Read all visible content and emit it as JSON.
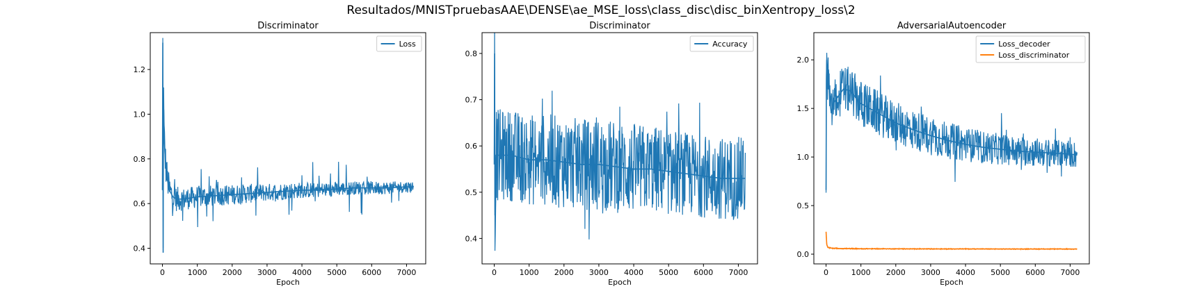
{
  "figure": {
    "suptitle": "Resultados/MNISTpruebasAAE\\DENSE\\ae_MSE_loss\\class_disc\\disc_binXentropy_loss\\2"
  },
  "chart_data": [
    {
      "type": "line",
      "title": "Discriminator",
      "xlabel": "Epoch",
      "ylabel": "",
      "xlim": [
        -350,
        7550
      ],
      "ylim": [
        0.33,
        1.365
      ],
      "xticks": [
        0,
        1000,
        2000,
        3000,
        4000,
        5000,
        6000,
        7000
      ],
      "yticks": [
        0.4,
        0.6,
        0.8,
        1.0,
        1.2
      ],
      "ytick_labels": [
        "0.4",
        "0.6",
        "0.8",
        "1.0",
        "1.2"
      ],
      "legend": "top-right",
      "grid": false,
      "series": [
        {
          "name": "Loss",
          "color": "#1f77b4",
          "x": [
            0,
            10,
            20,
            30,
            40,
            50,
            70,
            100,
            150,
            200,
            300,
            400,
            500,
            600,
            800,
            1000,
            1500,
            2000,
            2500,
            3000,
            3500,
            4000,
            4500,
            5000,
            5500,
            6000,
            6500,
            7000,
            7200
          ],
          "y": [
            0.66,
            1.32,
            0.38,
            1.12,
            0.97,
            0.9,
            0.83,
            0.76,
            0.7,
            0.66,
            0.63,
            0.62,
            0.62,
            0.62,
            0.625,
            0.63,
            0.635,
            0.64,
            0.645,
            0.65,
            0.655,
            0.66,
            0.66,
            0.665,
            0.67,
            0.67,
            0.67,
            0.675,
            0.675
          ],
          "band": [
            0.02,
            0.08,
            0.06,
            0.15,
            0.12,
            0.1,
            0.09,
            0.08,
            0.07,
            0.065,
            0.06,
            0.055,
            0.055,
            0.05,
            0.05,
            0.05,
            0.048,
            0.045,
            0.043,
            0.04,
            0.038,
            0.036,
            0.034,
            0.032,
            0.03,
            0.03,
            0.028,
            0.026,
            0.026
          ],
          "spikes": [
            0.12,
            0.12
          ]
        }
      ]
    },
    {
      "type": "line",
      "title": "Discriminator",
      "xlabel": "Epoch",
      "ylabel": "",
      "xlim": [
        -350,
        7550
      ],
      "ylim": [
        0.345,
        0.845
      ],
      "xticks": [
        0,
        1000,
        2000,
        3000,
        4000,
        5000,
        6000,
        7000
      ],
      "yticks": [
        0.4,
        0.5,
        0.6,
        0.7,
        0.8
      ],
      "ytick_labels": [
        "0.4",
        "0.5",
        "0.6",
        "0.7",
        "0.8"
      ],
      "legend": "top-right",
      "grid": false,
      "series": [
        {
          "name": "Accuracy",
          "color": "#1f77b4",
          "x": [
            0,
            10,
            20,
            50,
            100,
            300,
            500,
            1000,
            1500,
            2000,
            2500,
            3000,
            3500,
            4000,
            4500,
            5000,
            5500,
            6000,
            6500,
            7000,
            7200
          ],
          "y": [
            0.56,
            0.8,
            0.45,
            0.58,
            0.58,
            0.58,
            0.58,
            0.57,
            0.57,
            0.565,
            0.56,
            0.56,
            0.555,
            0.55,
            0.55,
            0.545,
            0.54,
            0.535,
            0.53,
            0.53,
            0.53
          ],
          "band": [
            0.1,
            0.1,
            0.1,
            0.1,
            0.1,
            0.1,
            0.1,
            0.1,
            0.1,
            0.1,
            0.1,
            0.1,
            0.1,
            0.1,
            0.095,
            0.095,
            0.09,
            0.09,
            0.09,
            0.09,
            0.09
          ],
          "spikes": [
            0.08,
            0.1
          ]
        }
      ]
    },
    {
      "type": "line",
      "title": "AdversarialAutoencoder",
      "xlabel": "Epoch",
      "ylabel": "",
      "xlim": [
        -350,
        7550
      ],
      "ylim": [
        -0.1,
        2.28
      ],
      "xticks": [
        0,
        1000,
        2000,
        3000,
        4000,
        5000,
        6000,
        7000
      ],
      "yticks": [
        0.0,
        0.5,
        1.0,
        1.5,
        2.0
      ],
      "ytick_labels": [
        "0.0",
        "0.5",
        "1.0",
        "1.5",
        "2.0"
      ],
      "legend": "top-right",
      "grid": false,
      "series": [
        {
          "name": "Loss_decoder",
          "color": "#1f77b4",
          "x": [
            0,
            10,
            20,
            40,
            70,
            100,
            150,
            200,
            300,
            500,
            700,
            1000,
            1500,
            2000,
            2500,
            3000,
            3500,
            4000,
            4500,
            5000,
            5500,
            6000,
            6500,
            7000,
            7200
          ],
          "y": [
            0.66,
            1.8,
            2.0,
            1.7,
            1.9,
            1.6,
            1.45,
            1.55,
            1.6,
            1.7,
            1.68,
            1.55,
            1.45,
            1.35,
            1.28,
            1.22,
            1.17,
            1.13,
            1.1,
            1.08,
            1.06,
            1.05,
            1.04,
            1.03,
            1.02
          ],
          "band": [
            0.05,
            0.15,
            0.15,
            0.2,
            0.22,
            0.22,
            0.22,
            0.24,
            0.25,
            0.25,
            0.24,
            0.24,
            0.23,
            0.22,
            0.21,
            0.2,
            0.19,
            0.18,
            0.17,
            0.16,
            0.15,
            0.15,
            0.14,
            0.14,
            0.14
          ],
          "spikes": [
            0.25,
            0.2
          ]
        },
        {
          "name": "Loss_discriminator",
          "color": "#ff7f0e",
          "x": [
            0,
            20,
            50,
            100,
            200,
            500,
            1000,
            2000,
            3000,
            4000,
            5000,
            6000,
            7000,
            7200
          ],
          "y": [
            0.23,
            0.1,
            0.07,
            0.065,
            0.06,
            0.058,
            0.056,
            0.055,
            0.054,
            0.054,
            0.053,
            0.053,
            0.053,
            0.053
          ],
          "band": [
            0.0,
            0.01,
            0.01,
            0.006,
            0.006,
            0.006,
            0.005,
            0.005,
            0.005,
            0.005,
            0.005,
            0.005,
            0.005,
            0.005
          ],
          "spikes": [
            0.0,
            0.0
          ]
        }
      ]
    }
  ]
}
